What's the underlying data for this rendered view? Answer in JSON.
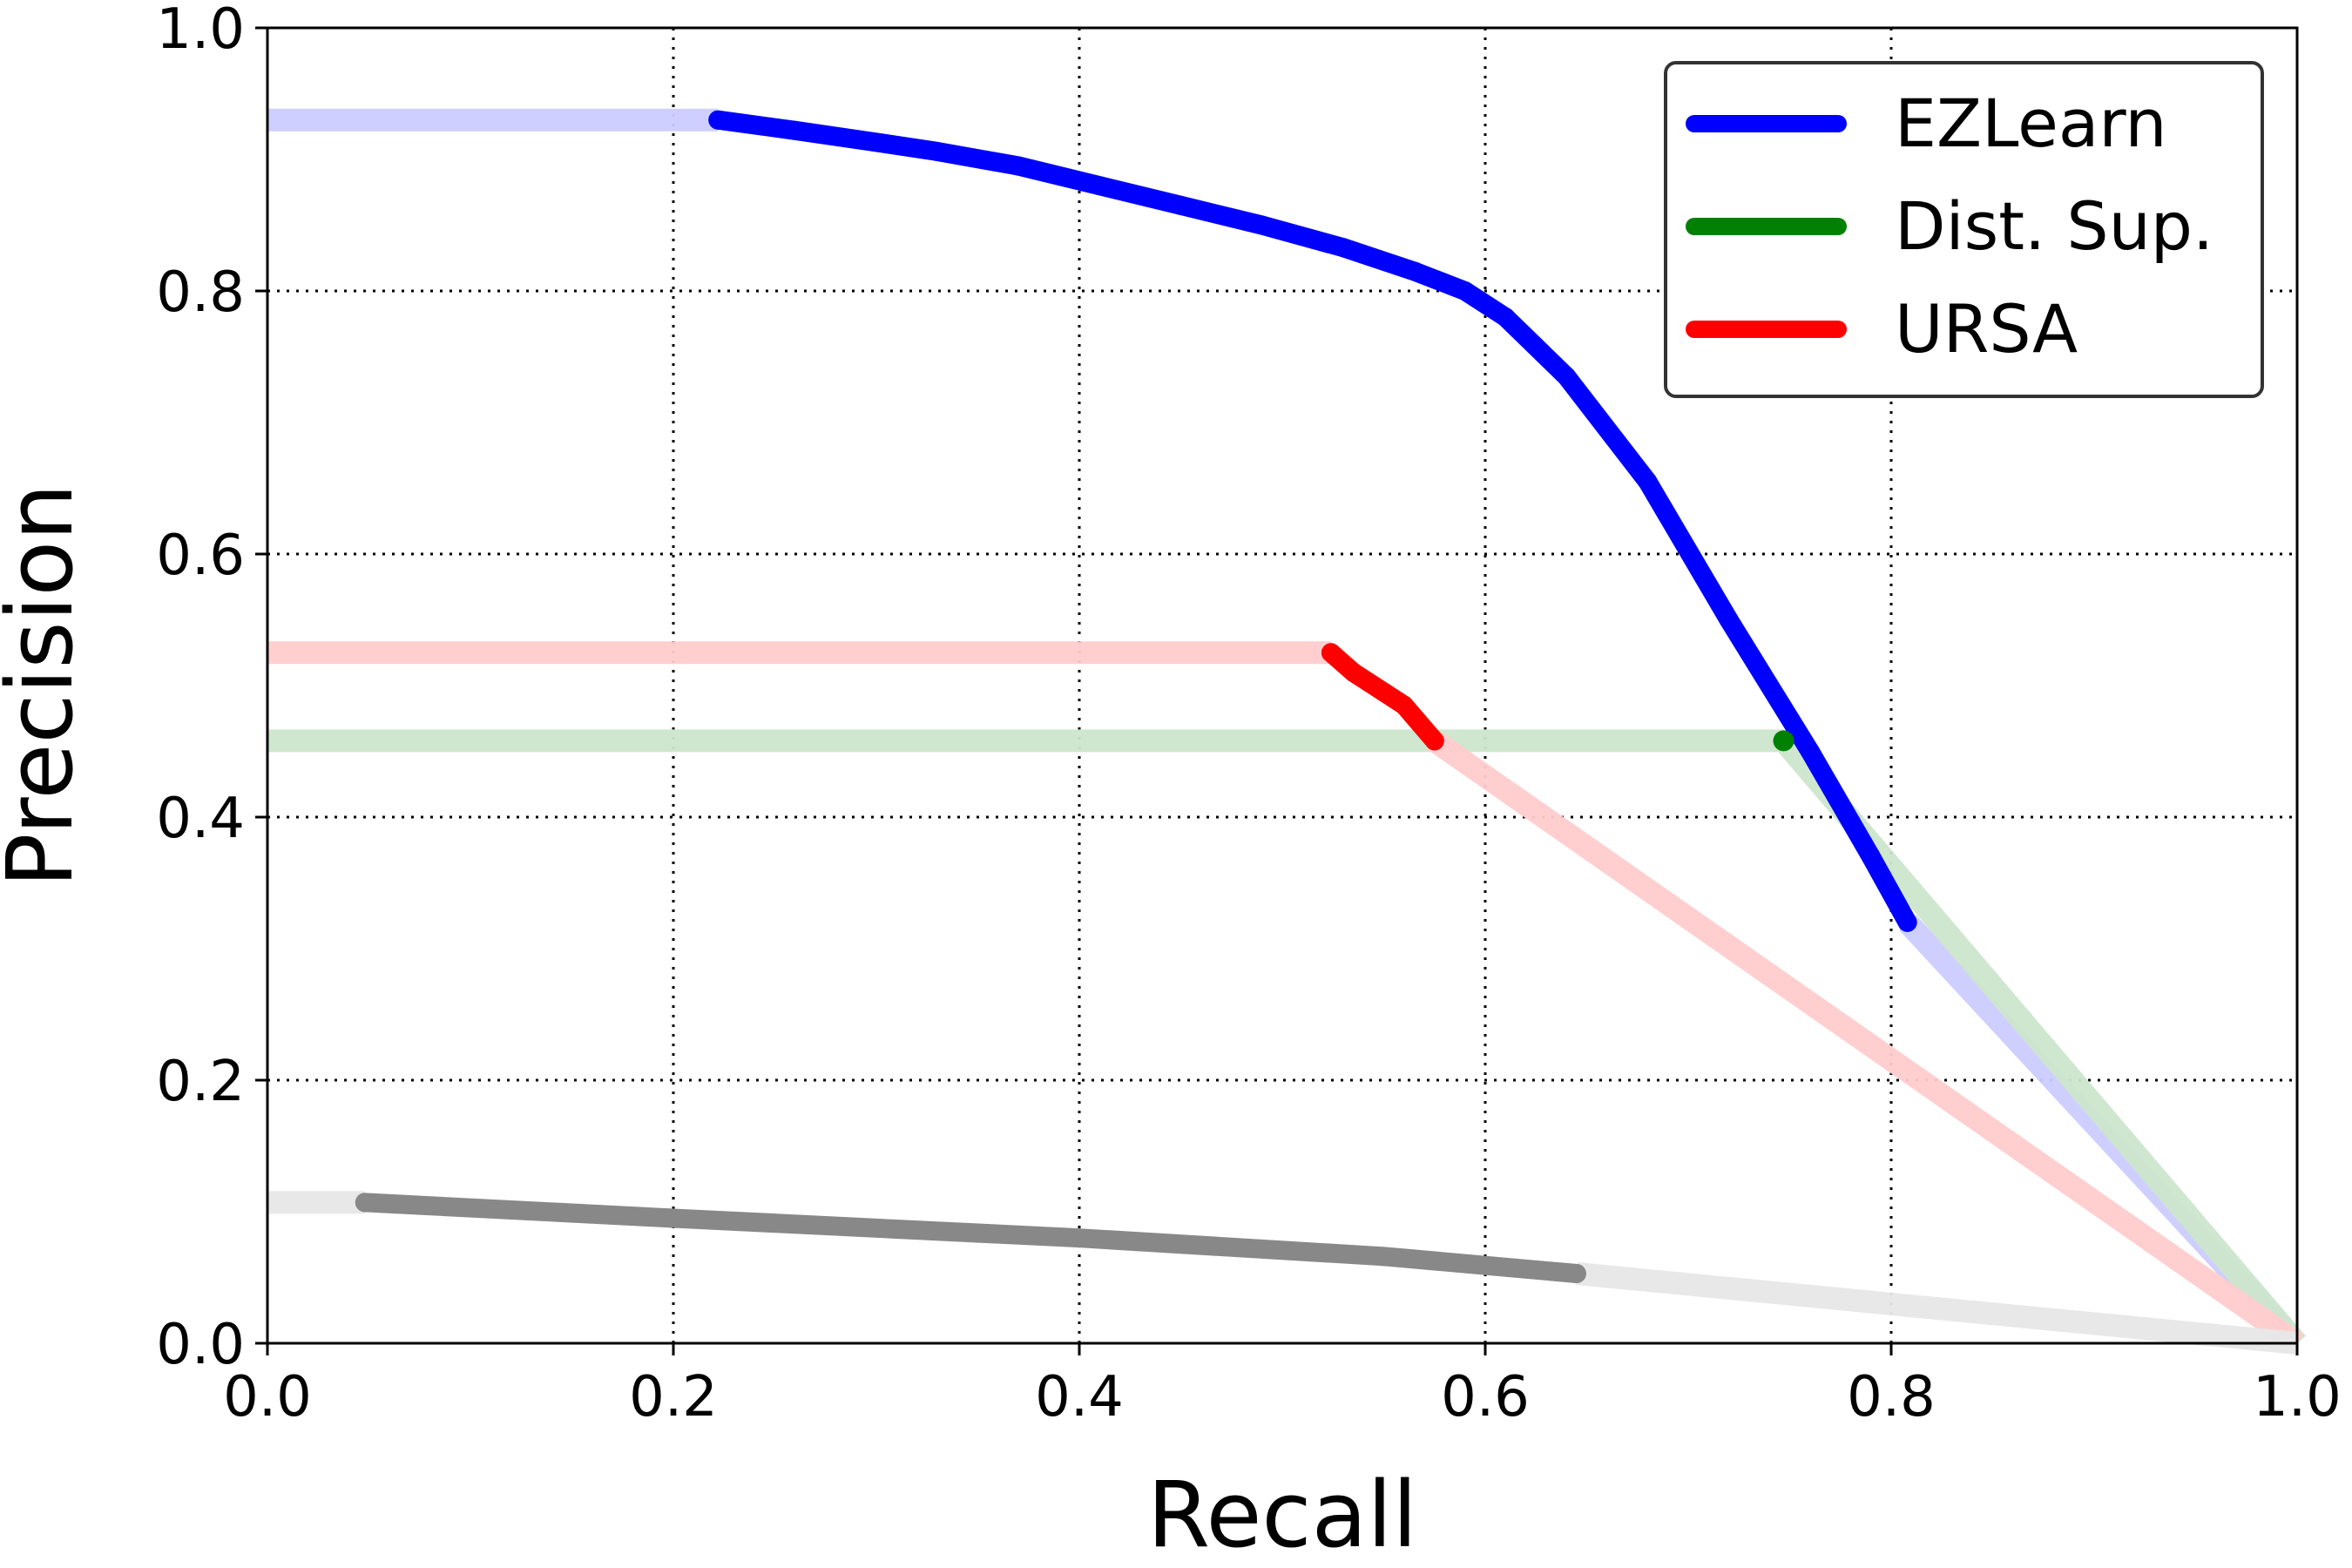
{
  "chart_data": {
    "type": "line",
    "xlabel": "Recall",
    "ylabel": "Precision",
    "xlim": [
      0.0,
      1.0
    ],
    "ylim": [
      0.0,
      1.0
    ],
    "xticks": [
      "0.0",
      "0.2",
      "0.4",
      "0.6",
      "0.8",
      "1.0"
    ],
    "yticks": [
      "0.0",
      "0.2",
      "0.4",
      "0.6",
      "0.8",
      "1.0"
    ],
    "grid": true,
    "legend_position": "top-right",
    "legend": [
      {
        "label": "EZLearn",
        "color": "#0000ff"
      },
      {
        "label": "Dist. Sup.",
        "color": "#008000"
      },
      {
        "label": "URSA",
        "color": "#ff0000"
      }
    ],
    "series": [
      {
        "name": "EZLearn",
        "color": "#0000ff",
        "x": [
          0.222,
          0.26,
          0.3,
          0.33,
          0.37,
          0.41,
          0.45,
          0.49,
          0.53,
          0.565,
          0.59,
          0.61,
          0.64,
          0.68,
          0.72,
          0.76,
          0.79,
          0.808
        ],
        "y": [
          0.93,
          0.922,
          0.913,
          0.906,
          0.895,
          0.88,
          0.865,
          0.85,
          0.833,
          0.815,
          0.8,
          0.78,
          0.735,
          0.655,
          0.55,
          0.45,
          0.37,
          0.32
        ],
        "extension": {
          "x": [
            0.0,
            0.222,
            null,
            0.808,
            1.0
          ],
          "y": [
            0.93,
            0.93,
            null,
            0.32,
            0.0
          ]
        }
      },
      {
        "name": "Dist. Sup.",
        "color": "#008000",
        "x": [
          0.747
        ],
        "y": [
          0.458
        ],
        "extension": {
          "x": [
            0.0,
            0.747,
            null,
            0.747,
            1.0
          ],
          "y": [
            0.458,
            0.458,
            null,
            0.458,
            0.0
          ]
        }
      },
      {
        "name": "URSA",
        "color": "#ff0000",
        "x": [
          0.524,
          0.535,
          0.55,
          0.56,
          0.575
        ],
        "y": [
          0.525,
          0.51,
          0.495,
          0.485,
          0.458
        ],
        "extension": {
          "x": [
            0.0,
            0.524,
            null,
            0.575,
            1.0
          ],
          "y": [
            0.525,
            0.525,
            null,
            0.458,
            0.0
          ]
        }
      },
      {
        "color": "#888888",
        "x": [
          0.048,
          0.2,
          0.4,
          0.55,
          0.645
        ],
        "y": [
          0.107,
          0.095,
          0.08,
          0.066,
          0.053
        ],
        "extension": {
          "x": [
            0.0,
            0.048,
            null,
            0.645,
            1.0
          ],
          "y": [
            0.107,
            0.107,
            null,
            0.053,
            0.0
          ]
        }
      }
    ]
  }
}
